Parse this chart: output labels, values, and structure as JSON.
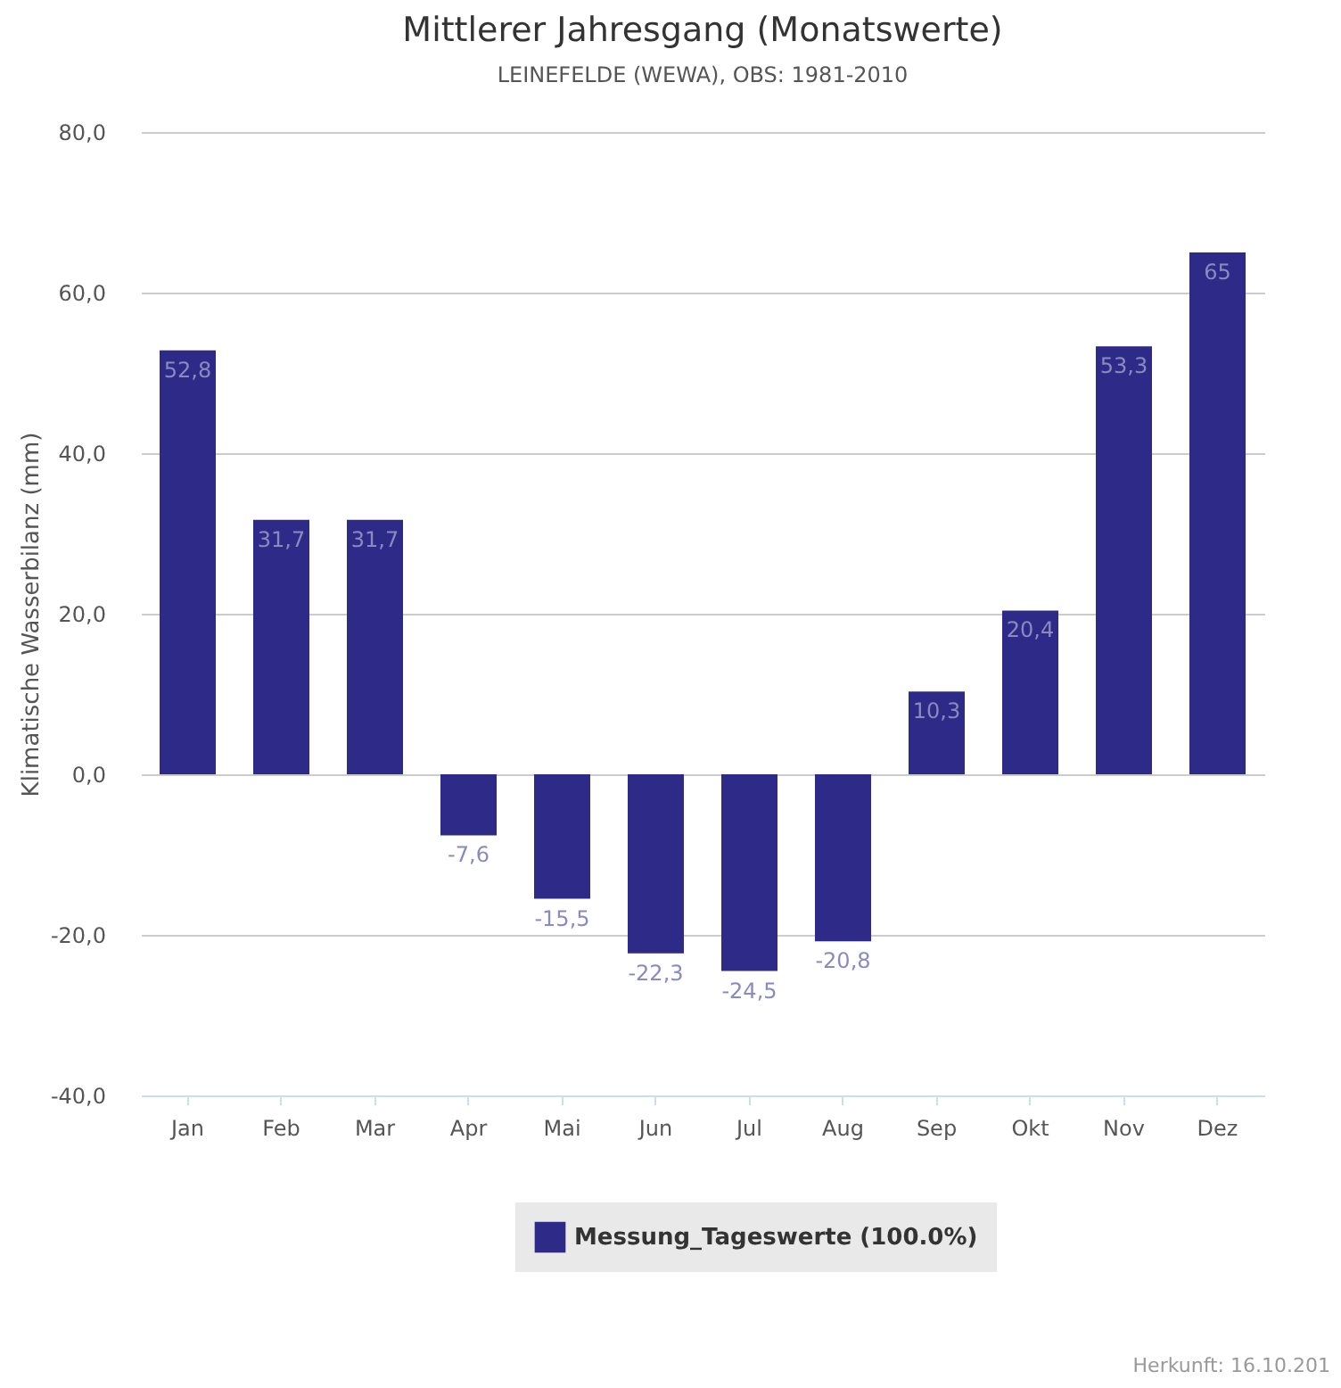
{
  "chart_data": {
    "type": "bar",
    "title": "Mittlerer Jahresgang (Monatswerte)",
    "subtitle": "LEINEFELDE (WEWA), OBS: 1981-2010",
    "ylabel": "Klimatische Wasserbilanz (mm)",
    "categories": [
      "Jan",
      "Feb",
      "Mar",
      "Apr",
      "Mai",
      "Jun",
      "Jul",
      "Aug",
      "Sep",
      "Okt",
      "Nov",
      "Dez"
    ],
    "series": [
      {
        "name": "Messung_Tageswerte (100.0%)",
        "color": "#2e2a87",
        "values": [
          52.8,
          31.7,
          31.7,
          -7.6,
          -15.5,
          -22.3,
          -24.5,
          -20.8,
          10.3,
          20.4,
          53.3,
          65
        ]
      }
    ],
    "value_labels": [
      "52,8",
      "31,7",
      "31,7",
      "-7,6",
      "-15,5",
      "-22,3",
      "-24,5",
      "-20,8",
      "10,3",
      "20,4",
      "53,3",
      "65"
    ],
    "ylim": [
      -40,
      80
    ],
    "yticks": [
      {
        "value": -40,
        "label": "-40,0"
      },
      {
        "value": -20,
        "label": "-20,0"
      },
      {
        "value": 0,
        "label": "0,0"
      },
      {
        "value": 20,
        "label": "20,0"
      },
      {
        "value": 40,
        "label": "40,0"
      },
      {
        "value": 60,
        "label": "60,0"
      },
      {
        "value": 80,
        "label": "80,0"
      }
    ],
    "grid": "y",
    "legend": "bottom",
    "annotations": [
      "Herkunft: 16.10.201"
    ]
  }
}
